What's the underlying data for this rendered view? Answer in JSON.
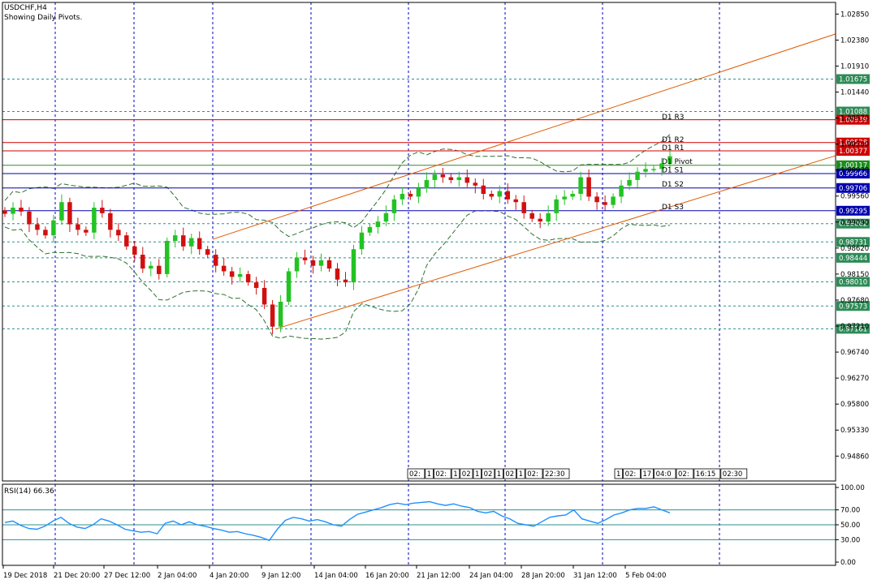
{
  "header": {
    "symbol": "USDCHF,H4",
    "subtitle": "Showing Daily Pivots."
  },
  "colors": {
    "background": "#ffffff",
    "frame": "#000000",
    "grid": "#0000c8",
    "bull_candle": "#22c322",
    "bear_candle": "#d01010",
    "channel": "#e05a00",
    "pivot_red": "#d00000",
    "pivot_blue": "#0000b0",
    "bollinger": "#2f6f2f",
    "rsi_line": "#1e90ff",
    "rsi_level": "#2f8f8f"
  },
  "price_axis": {
    "min": 0.9441,
    "max": 1.0306,
    "labels": [
      "1.02850",
      "1.02380",
      "1.01910",
      "1.01440",
      "1.00970",
      "1.00500",
      "1.00030",
      "0.99560",
      "0.99090",
      "0.98620",
      "0.98150",
      "0.97680",
      "0.97210",
      "0.96740",
      "0.96270",
      "0.95800",
      "0.95330",
      "0.94860"
    ]
  },
  "horizontal_levels": [
    {
      "value": "1.01675",
      "style": "dash",
      "color": "#2f8f8f",
      "tag_bg": "#2e8b57"
    },
    {
      "value": "1.01088",
      "style": "dash",
      "color": "#2f8f8f",
      "tag_bg": "#2e8b57"
    },
    {
      "value": "1.00939",
      "style": "solid",
      "color": "#d00000",
      "tag_bg": "#d00000"
    },
    {
      "value": "1.00528",
      "style": "solid",
      "color": "#d00000",
      "tag_bg": "#d00000"
    },
    {
      "value": "1.00377",
      "style": "solid",
      "color": "#d00000",
      "tag_bg": "#d00000"
    },
    {
      "value": "1.00117",
      "style": "solid",
      "color": "#2e8b2e",
      "tag_bg": "#1a8f1a"
    },
    {
      "value": "0.99966",
      "style": "solid",
      "color": "#0000b0",
      "tag_bg": "#0000b0"
    },
    {
      "value": "0.99706",
      "style": "solid",
      "color": "#0000b0",
      "tag_bg": "#0000b0"
    },
    {
      "value": "0.99295",
      "style": "solid",
      "color": "#0000b0",
      "tag_bg": "#0000b0"
    },
    {
      "value": "0.99062",
      "style": "dash",
      "color": "#2f8f8f",
      "tag_bg": "#2e8b57"
    },
    {
      "value": "0.98731",
      "style": "dash",
      "color": "#2f8f8f",
      "tag_bg": "#2e8b57"
    },
    {
      "value": "0.98444",
      "style": "dash",
      "color": "#2f8f8f",
      "tag_bg": "#2e8b57"
    },
    {
      "value": "0.98010",
      "style": "dash",
      "color": "#2f8f8f",
      "tag_bg": "#2e8b57"
    },
    {
      "value": "0.97573",
      "style": "dash",
      "color": "#2f8f8f",
      "tag_bg": "#2e8b57"
    },
    {
      "value": "0.97161",
      "style": "dash",
      "color": "#2f8f8f",
      "tag_bg": "#2e8b57"
    }
  ],
  "pivot_labels": [
    {
      "text": "D1 R3",
      "value": 1.0092
    },
    {
      "text": "D1 R2",
      "value": 1.0051
    },
    {
      "text": "D1 R1",
      "value": 1.0036
    },
    {
      "text": "D1 Pivot",
      "value": 1.0011
    },
    {
      "text": "D1 S1",
      "value": 0.9996
    },
    {
      "text": "D1 S2",
      "value": 0.997
    },
    {
      "text": "D1 S3",
      "value": 0.9929
    }
  ],
  "time_axis": {
    "labels": [
      "19 Dec 2018",
      "21 Dec 20:00",
      "27 Dec 12:00",
      "2 Jan 04:00",
      "4 Jan 20:00",
      "9 Jan 12:00",
      "14 Jan 04:00",
      "16 Jan 20:00",
      "21 Jan 12:00",
      "24 Jan 04:00",
      "28 Jan 20:00",
      "31 Jan 12:00",
      "5 Feb 04:00"
    ]
  },
  "time_markers": {
    "group1": [
      "02:",
      "1",
      "02:",
      "1",
      "02",
      "1",
      "02",
      "1",
      "02",
      "1",
      "02:",
      "22:30"
    ],
    "group2": [
      "1",
      "02:",
      "17",
      "04:0",
      "02:",
      "16:15",
      "02:30"
    ]
  },
  "rsi": {
    "title": "RSI(14) 66.36",
    "min": 0,
    "max": 100,
    "levels": [
      70,
      50,
      30
    ],
    "labels": [
      "100.00",
      "70.00",
      "50.00",
      "30.00",
      "0.00"
    ]
  },
  "chart_data": [
    {
      "type": "candlestick",
      "title": "USDCHF,H4",
      "subtitle": "Showing Daily Pivots.",
      "ylim": [
        0.9441,
        1.0306
      ],
      "x_labels": [
        "19 Dec 2018",
        "21 Dec 20:00",
        "27 Dec 12:00",
        "2 Jan 04:00",
        "4 Jan 20:00",
        "9 Jan 12:00",
        "14 Jan 04:00",
        "16 Jan 20:00",
        "21 Jan 12:00",
        "24 Jan 04:00",
        "28 Jan 20:00",
        "31 Jan 12:00",
        "5 Feb 04:00"
      ],
      "close_path": [
        0.9924,
        0.9935,
        0.9928,
        0.9905,
        0.9895,
        0.9885,
        0.9912,
        0.9945,
        0.9905,
        0.9895,
        0.989,
        0.9935,
        0.9925,
        0.9895,
        0.9885,
        0.9865,
        0.985,
        0.9825,
        0.983,
        0.9815,
        0.9875,
        0.9885,
        0.9865,
        0.988,
        0.986,
        0.985,
        0.983,
        0.982,
        0.981,
        0.9815,
        0.98,
        0.979,
        0.976,
        0.972,
        0.9765,
        0.982,
        0.9845,
        0.984,
        0.983,
        0.984,
        0.9825,
        0.9805,
        0.98,
        0.986,
        0.989,
        0.99,
        0.991,
        0.9925,
        0.995,
        0.996,
        0.9955,
        0.997,
        0.9985,
        0.9995,
        0.999,
        0.9985,
        0.999,
        0.998,
        0.9975,
        0.996,
        0.9955,
        0.9965,
        0.995,
        0.9945,
        0.9925,
        0.9915,
        0.991,
        0.9925,
        0.995,
        0.9955,
        0.996,
        0.999,
        0.9955,
        0.9945,
        0.994,
        0.9955,
        0.9975,
        0.9985,
        1.0,
        1.0005,
        1.0005,
        1.0015,
        1.0028
      ],
      "channel_lines": [
        {
          "from": {
            "x": "4 Jan 20:00",
            "y": 0.9878
          },
          "to": {
            "x": "end",
            "y": 1.0017
          }
        },
        {
          "from": {
            "x": "9 Jan 12:00",
            "y": 0.9716
          },
          "to": {
            "x": "end",
            "y": 1.0249
          }
        }
      ],
      "horizontal_levels": [
        "1.01675",
        "1.01088",
        "1.00939",
        "1.00528",
        "1.00377",
        "1.00117",
        "0.99966",
        "0.99706",
        "0.99295",
        "0.99062",
        "0.98731",
        "0.98444",
        "0.98010",
        "0.97573",
        "0.97161"
      ],
      "pivots": {
        "R3": 1.00939,
        "R2": 1.00528,
        "R1": 1.00377,
        "Pivot": 1.00117,
        "S1": 0.99966,
        "S2": 0.99706,
        "S3": 0.99295
      }
    },
    {
      "type": "line",
      "title": "RSI(14) 66.36",
      "ylim": [
        0,
        100
      ],
      "levels": [
        70,
        50,
        30
      ],
      "values": [
        53,
        55,
        49,
        45,
        44,
        48,
        55,
        60,
        52,
        47,
        45,
        50,
        58,
        55,
        50,
        44,
        42,
        40,
        41,
        38,
        52,
        55,
        50,
        54,
        50,
        48,
        45,
        43,
        40,
        41,
        38,
        36,
        33,
        29,
        44,
        56,
        60,
        58,
        55,
        57,
        54,
        50,
        48,
        57,
        64,
        67,
        70,
        73,
        77,
        79,
        77,
        79,
        80,
        81,
        78,
        76,
        78,
        75,
        73,
        68,
        66,
        68,
        62,
        58,
        52,
        50,
        48,
        54,
        60,
        62,
        63,
        70,
        58,
        55,
        52,
        57,
        63,
        66,
        70,
        72,
        72,
        74,
        70,
        66
      ]
    }
  ]
}
